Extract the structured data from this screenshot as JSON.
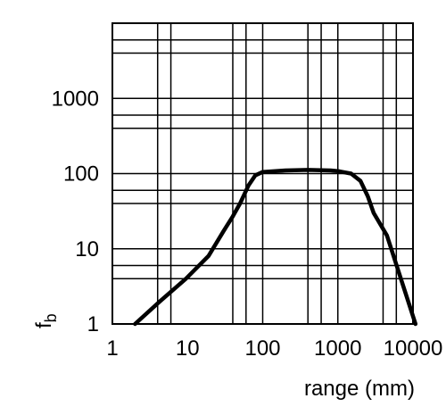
{
  "chart_data": {
    "type": "line",
    "xscale": "log",
    "yscale": "log",
    "xlim": [
      1,
      10000
    ],
    "ylim": [
      1,
      10000
    ],
    "grid": true,
    "xlabel": "range (mm)",
    "ylabel": "f",
    "ylabel_subscript": "b",
    "x_ticks": [
      1,
      10,
      100,
      1000,
      10000
    ],
    "x_tick_labels": [
      "1",
      "10",
      "100",
      "1000",
      "10000"
    ],
    "y_ticks": [
      1,
      10,
      100,
      1000
    ],
    "y_tick_labels": [
      "1",
      "10",
      "100",
      "1000"
    ],
    "x_gridlines": [
      1,
      4,
      6,
      40,
      60,
      100,
      400,
      600,
      1000,
      4000,
      6000,
      10000
    ],
    "y_gridlines": [
      1,
      4,
      6,
      10,
      40,
      60,
      100,
      400,
      600,
      1000,
      4000,
      6000,
      10000
    ],
    "series": [
      {
        "x": [
          2,
          4.3,
          9.5,
          19,
          30,
          40,
          50,
          65,
          80,
          100,
          200,
          400,
          800,
          1000,
          1500,
          2000,
          2500,
          3000,
          4500,
          10800
        ],
        "y": [
          1,
          2,
          4,
          8,
          17,
          27,
          40,
          70,
          95,
          105,
          110,
          112,
          110,
          108,
          100,
          80,
          50,
          30,
          15,
          1
        ]
      }
    ]
  }
}
